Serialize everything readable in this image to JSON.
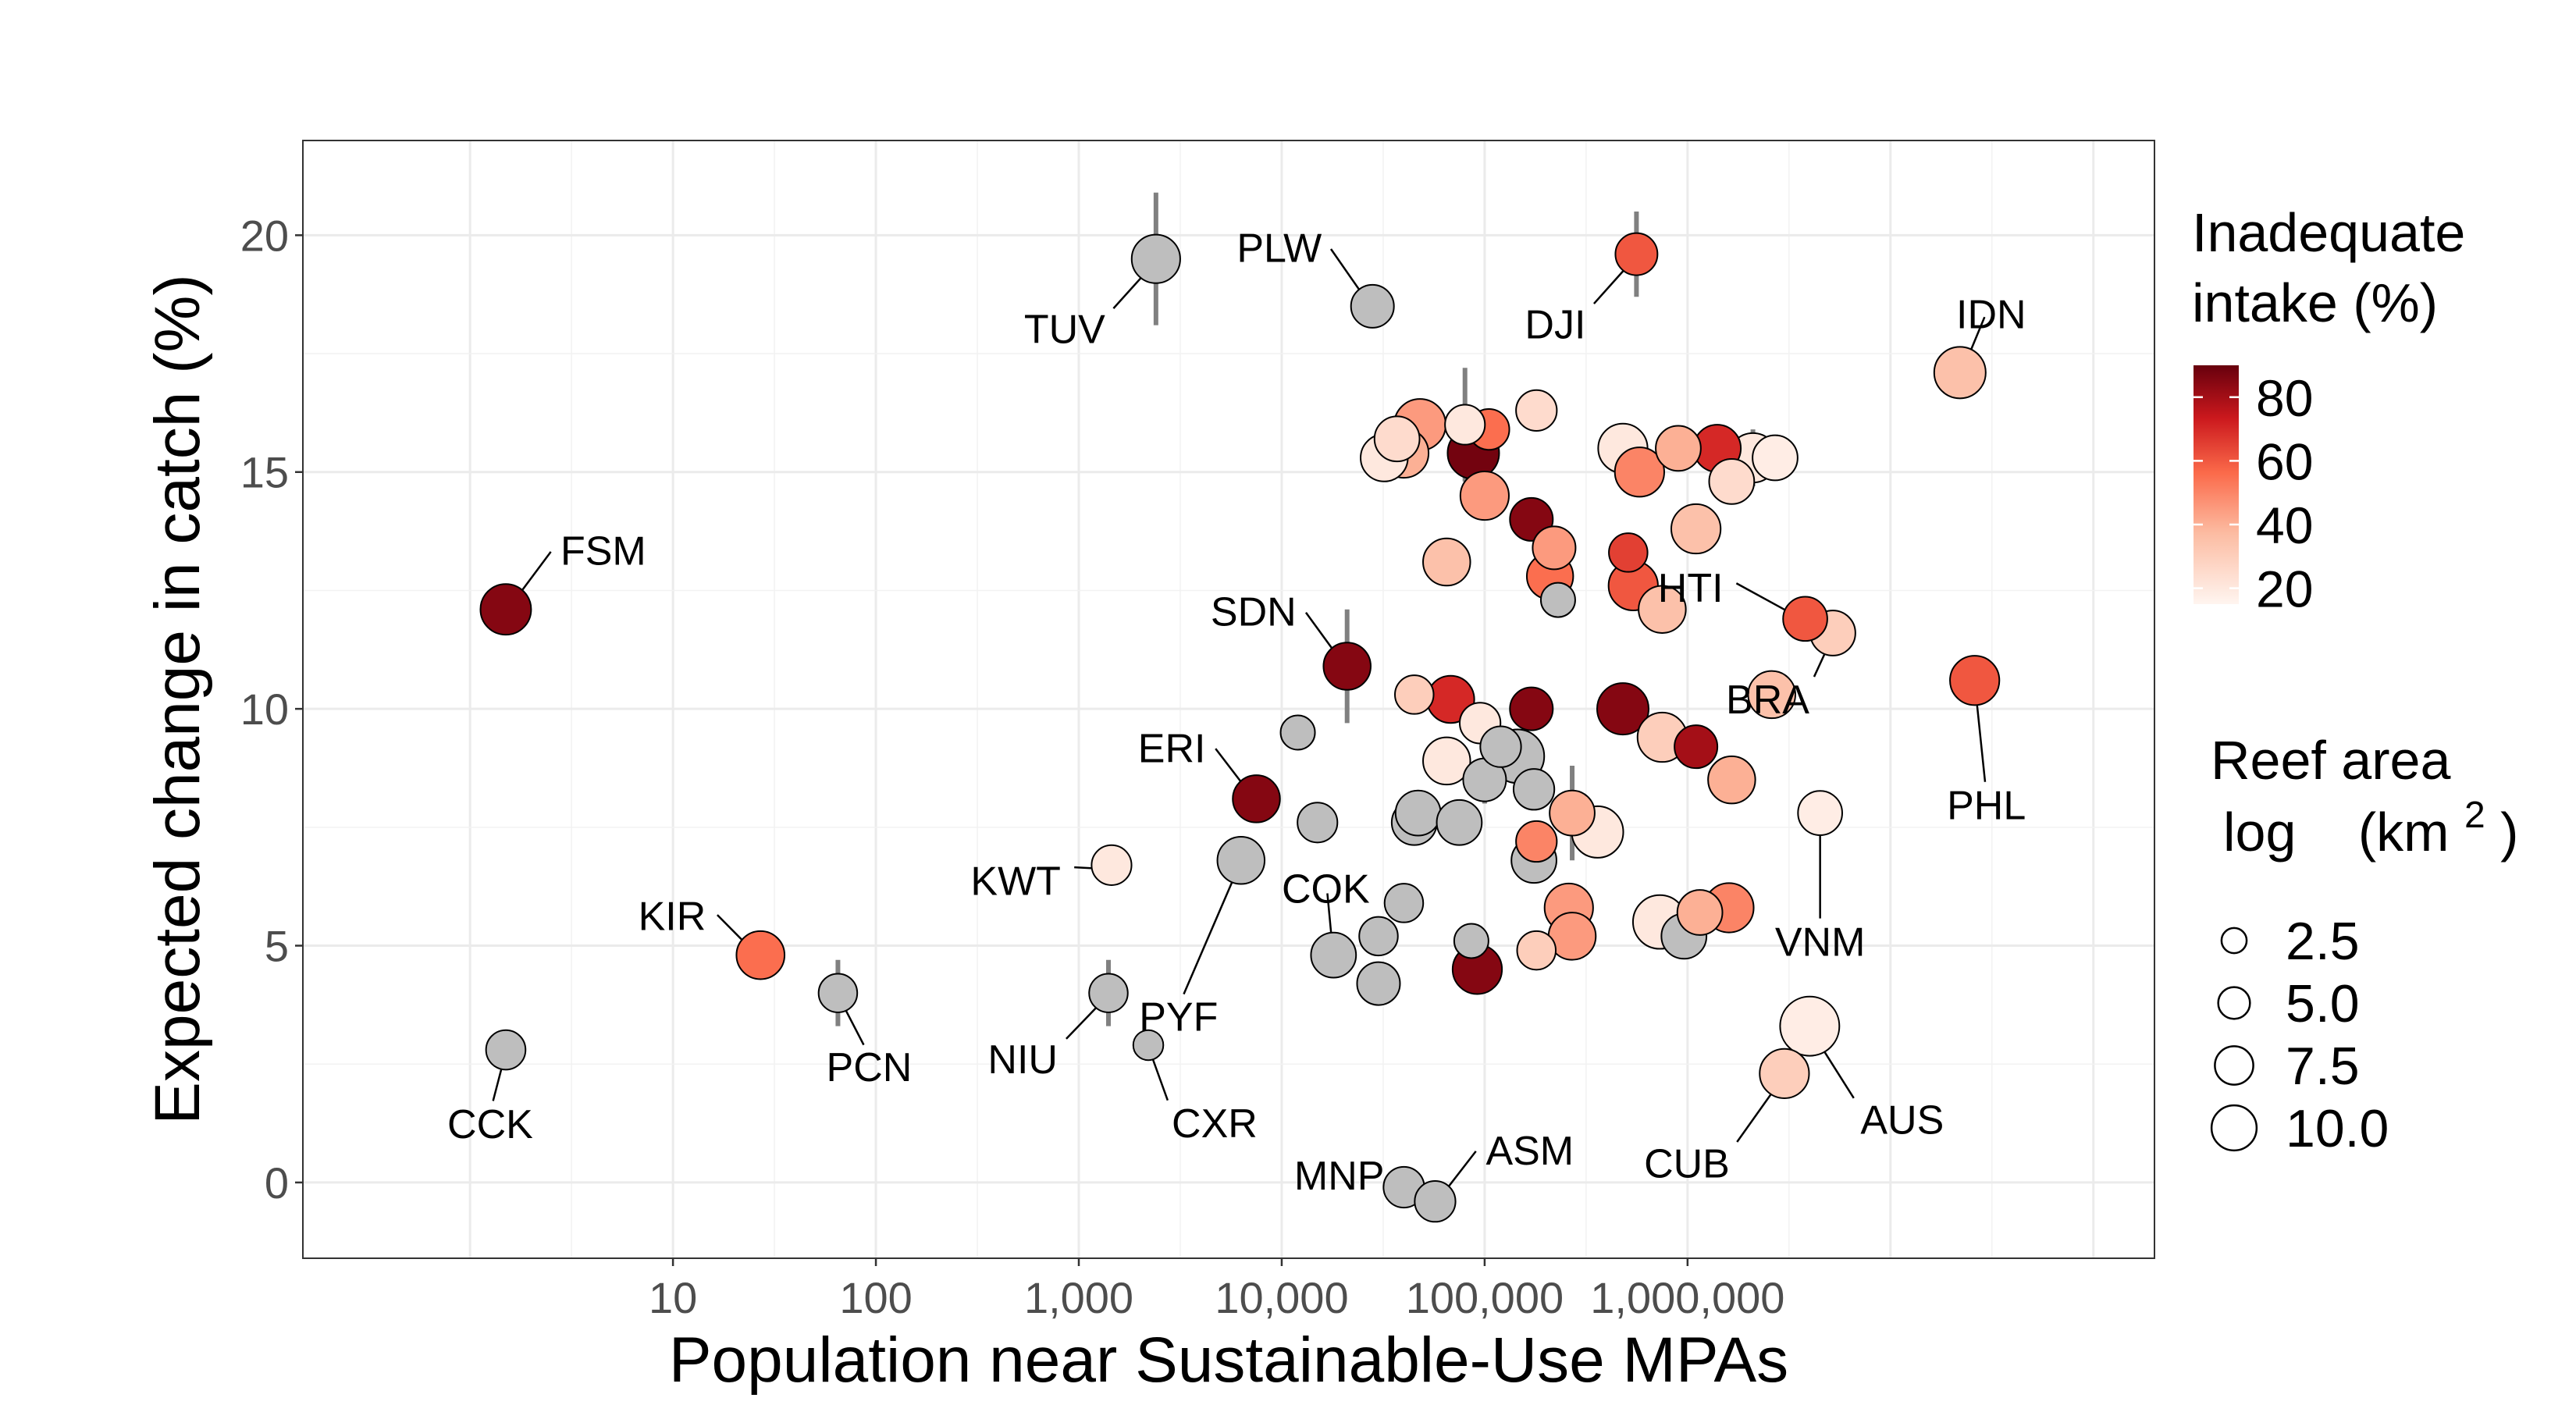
{
  "chart_data": {
    "type": "scatter",
    "xlabel": "Population near Sustainable-Use MPAs",
    "ylabel": "Expected change in catch (%)",
    "x_scale": "log10",
    "xlim": [
      0.15,
      200000000
    ],
    "ylim": [
      -1.6,
      22
    ],
    "x_ticks": [
      {
        "value": 10,
        "label": "10"
      },
      {
        "value": 100,
        "label": "100"
      },
      {
        "value": 1000,
        "label": "1,000"
      },
      {
        "value": 10000,
        "label": "10,000"
      },
      {
        "value": 100000,
        "label": "100,000"
      },
      {
        "value": 1000000,
        "label": "1,000,000"
      }
    ],
    "y_ticks": [
      {
        "value": 0,
        "label": "0"
      },
      {
        "value": 5,
        "label": "5"
      },
      {
        "value": 10,
        "label": "10"
      },
      {
        "value": 15,
        "label": "15"
      },
      {
        "value": 20,
        "label": "20"
      }
    ],
    "grid": true,
    "legend_placement": "right",
    "color_legend": {
      "title": [
        "Inadequate",
        "intake (%)"
      ],
      "ticks": [
        {
          "value": 80,
          "label": "80"
        },
        {
          "value": 60,
          "label": "60"
        },
        {
          "value": 40,
          "label": "40"
        },
        {
          "value": 20,
          "label": "20"
        }
      ],
      "range": [
        15,
        90
      ],
      "colors": [
        "#fff5f0",
        "#fcbba1",
        "#fb6a4a",
        "#cb181d",
        "#67000d"
      ],
      "na_color": "#bebebe"
    },
    "size_legend": {
      "title_line1": "Reef area",
      "title_line2_a": "log",
      "title_line2_b": "(km",
      "title_sup": "2",
      "title_close": ")",
      "entries": [
        {
          "value": 2.5,
          "label": "2.5"
        },
        {
          "value": 5.0,
          "label": "5.0"
        },
        {
          "value": 7.5,
          "label": "7.5"
        },
        {
          "value": 10.0,
          "label": "10.0"
        }
      ]
    },
    "points": [
      {
        "x": 1.5,
        "y": 12.1,
        "intake": 85,
        "size": 7.8,
        "label": "FSM"
      },
      {
        "x": 1.5,
        "y": 2.8,
        "intake": null,
        "size": 5.2,
        "label": "CCK",
        "err": 0.3
      },
      {
        "x": 27,
        "y": 4.8,
        "intake": 55,
        "size": 7.2,
        "label": "KIR"
      },
      {
        "x": 65,
        "y": 4.0,
        "intake": null,
        "size": 5.0,
        "label": "PCN",
        "err": 0.7
      },
      {
        "x": 1400,
        "y": 4.0,
        "intake": null,
        "size": 5.0,
        "label": "NIU",
        "err": 0.7
      },
      {
        "x": 2200,
        "y": 2.9,
        "intake": null,
        "size": 3.0,
        "label": "CXR"
      },
      {
        "x": 1450,
        "y": 6.7,
        "intake": 20,
        "size": 5.3,
        "label": "KWT"
      },
      {
        "x": 2400,
        "y": 19.5,
        "intake": null,
        "size": 7.3,
        "label": "TUV",
        "err": 1.4
      },
      {
        "x": 28000,
        "y": 18.5,
        "intake": null,
        "size": 6.0,
        "label": "PLW"
      },
      {
        "x": 560000,
        "y": 19.6,
        "intake": 60,
        "size": 5.8,
        "label": "DJI",
        "err": 0.9
      },
      {
        "x": 22000000,
        "y": 17.1,
        "intake": 35,
        "size": 8.0,
        "label": "IDN"
      },
      {
        "x": 21000,
        "y": 10.9,
        "intake": 85,
        "size": 7.0,
        "label": "SDN",
        "err": 1.2
      },
      {
        "x": 7500,
        "y": 8.1,
        "intake": 85,
        "size": 7.0,
        "label": "ERI"
      },
      {
        "x": 6300,
        "y": 6.8,
        "intake": null,
        "size": 7.0,
        "label": "PYF"
      },
      {
        "x": 18000,
        "y": 4.8,
        "intake": null,
        "size": 6.5,
        "label": "COK"
      },
      {
        "x": 40000,
        "y": -0.1,
        "intake": null,
        "size": 5.5,
        "label": "MNP",
        "err": 0.4
      },
      {
        "x": 57000,
        "y": -0.4,
        "intake": null,
        "size": 5.5,
        "label": "ASM"
      },
      {
        "x": 3000000,
        "y": 2.3,
        "intake": 30,
        "size": 7.5,
        "label": "CUB"
      },
      {
        "x": 4000000,
        "y": 3.3,
        "intake": 18,
        "size": 9.8,
        "label": "AUS"
      },
      {
        "x": 4500000,
        "y": 7.8,
        "intake": 18,
        "size": 6.3,
        "label": "VNM"
      },
      {
        "x": 3800000,
        "y": 11.9,
        "intake": 60,
        "size": 6.3,
        "label": "HTI"
      },
      {
        "x": 5200000,
        "y": 11.6,
        "intake": 30,
        "size": 6.5,
        "label": "BRA"
      },
      {
        "x": 26000000,
        "y": 10.6,
        "intake": 60,
        "size": 7.5,
        "label": "PHL"
      },
      {
        "x": 32000,
        "y": 15.3,
        "intake": 20,
        "size": 7.0
      },
      {
        "x": 37000,
        "y": 15.7,
        "intake": 25,
        "size": 6.5
      },
      {
        "x": 40000,
        "y": 15.4,
        "intake": 40,
        "size": 7.5,
        "err": 0.5
      },
      {
        "x": 48000,
        "y": 16.0,
        "intake": 45,
        "size": 8.0
      },
      {
        "x": 80000,
        "y": 16.0,
        "intake": 20,
        "size": 5.3,
        "err": 1.2
      },
      {
        "x": 88000,
        "y": 15.4,
        "intake": 88,
        "size": 8.0
      },
      {
        "x": 105000,
        "y": 15.9,
        "intake": 55,
        "size": 5.5
      },
      {
        "x": 180000,
        "y": 16.3,
        "intake": 25,
        "size": 5.5
      },
      {
        "x": 100000,
        "y": 14.5,
        "intake": 45,
        "size": 7.3,
        "err": 0.5
      },
      {
        "x": 170000,
        "y": 14.0,
        "intake": 85,
        "size": 6.0
      },
      {
        "x": 65000,
        "y": 13.1,
        "intake": 35,
        "size": 7.0
      },
      {
        "x": 220000,
        "y": 13.4,
        "intake": 45,
        "size": 6.0
      },
      {
        "x": 210000,
        "y": 12.8,
        "intake": 55,
        "size": 6.8
      },
      {
        "x": 230000,
        "y": 12.3,
        "intake": null,
        "size": 4.0
      },
      {
        "x": 480000,
        "y": 15.5,
        "intake": 20,
        "size": 7.5
      },
      {
        "x": 580000,
        "y": 15.0,
        "intake": 50,
        "size": 7.5
      },
      {
        "x": 900000,
        "y": 15.5,
        "intake": 40,
        "size": 6.5
      },
      {
        "x": 1400000,
        "y": 15.5,
        "intake": 70,
        "size": 7.0
      },
      {
        "x": 1650000,
        "y": 14.8,
        "intake": 25,
        "size": 6.5
      },
      {
        "x": 2100000,
        "y": 15.3,
        "intake": 20,
        "size": 7.5,
        "err": 0.6
      },
      {
        "x": 2700000,
        "y": 15.3,
        "intake": 18,
        "size": 6.5
      },
      {
        "x": 1100000,
        "y": 13.8,
        "intake": 35,
        "size": 7.5
      },
      {
        "x": 510000,
        "y": 13.3,
        "intake": 65,
        "size": 5.0
      },
      {
        "x": 540000,
        "y": 12.6,
        "intake": 60,
        "size": 7.5
      },
      {
        "x": 750000,
        "y": 12.1,
        "intake": 35,
        "size": 7.0
      },
      {
        "x": 45000,
        "y": 10.3,
        "intake": 30,
        "size": 5.0
      },
      {
        "x": 68000,
        "y": 10.2,
        "intake": 70,
        "size": 7.0
      },
      {
        "x": 95000,
        "y": 9.7,
        "intake": 20,
        "size": 5.5
      },
      {
        "x": 170000,
        "y": 10.0,
        "intake": 85,
        "size": 6.0
      },
      {
        "x": 480000,
        "y": 10.0,
        "intake": 85,
        "size": 8.0
      },
      {
        "x": 750000,
        "y": 9.4,
        "intake": 30,
        "size": 7.5
      },
      {
        "x": 1100000,
        "y": 9.2,
        "intake": 80,
        "size": 6.0
      },
      {
        "x": 2600000,
        "y": 10.3,
        "intake": 35,
        "size": 7.0
      },
      {
        "x": 12000,
        "y": 9.5,
        "intake": null,
        "size": 4.0
      },
      {
        "x": 120000,
        "y": 9.2,
        "intake": null,
        "size": 5.5
      },
      {
        "x": 145000,
        "y": 9.0,
        "intake": null,
        "size": 8.5
      },
      {
        "x": 65000,
        "y": 8.9,
        "intake": 20,
        "size": 7.0
      },
      {
        "x": 100000,
        "y": 8.5,
        "intake": null,
        "size": 6.0,
        "err": 0.5
      },
      {
        "x": 175000,
        "y": 8.3,
        "intake": null,
        "size": 5.5
      },
      {
        "x": 1650000,
        "y": 8.5,
        "intake": 40,
        "size": 7.0
      },
      {
        "x": 15000,
        "y": 7.6,
        "intake": null,
        "size": 5.3,
        "err": 0.4
      },
      {
        "x": 45000,
        "y": 7.6,
        "intake": null,
        "size": 6.5
      },
      {
        "x": 47000,
        "y": 7.8,
        "intake": null,
        "size": 6.5
      },
      {
        "x": 75000,
        "y": 7.6,
        "intake": null,
        "size": 6.5
      },
      {
        "x": 180000,
        "y": 7.2,
        "intake": 50,
        "size": 5.5,
        "err": 0.4
      },
      {
        "x": 270000,
        "y": 7.8,
        "intake": 40,
        "size": 6.5,
        "err": 1.0
      },
      {
        "x": 360000,
        "y": 7.4,
        "intake": 20,
        "size": 8.0
      },
      {
        "x": 175000,
        "y": 6.8,
        "intake": null,
        "size": 6.5
      },
      {
        "x": 40000,
        "y": 5.9,
        "intake": null,
        "size": 5.0
      },
      {
        "x": 30000,
        "y": 5.2,
        "intake": null,
        "size": 5.0
      },
      {
        "x": 86000,
        "y": 5.1,
        "intake": null,
        "size": 4.0
      },
      {
        "x": 92000,
        "y": 4.5,
        "intake": 85,
        "size": 7.5,
        "err": 0.3
      },
      {
        "x": 180000,
        "y": 4.9,
        "intake": 30,
        "size": 5.0
      },
      {
        "x": 260000,
        "y": 5.8,
        "intake": 45,
        "size": 7.3
      },
      {
        "x": 270000,
        "y": 5.2,
        "intake": 45,
        "size": 7.0
      },
      {
        "x": 730000,
        "y": 5.5,
        "intake": 20,
        "size": 8.5
      },
      {
        "x": 960000,
        "y": 5.2,
        "intake": null,
        "size": 6.5,
        "err": 0.4
      },
      {
        "x": 1150000,
        "y": 5.7,
        "intake": 40,
        "size": 6.5
      },
      {
        "x": 1600000,
        "y": 5.8,
        "intake": 50,
        "size": 7.5
      },
      {
        "x": 30000,
        "y": 4.2,
        "intake": null,
        "size": 6.0
      }
    ]
  }
}
